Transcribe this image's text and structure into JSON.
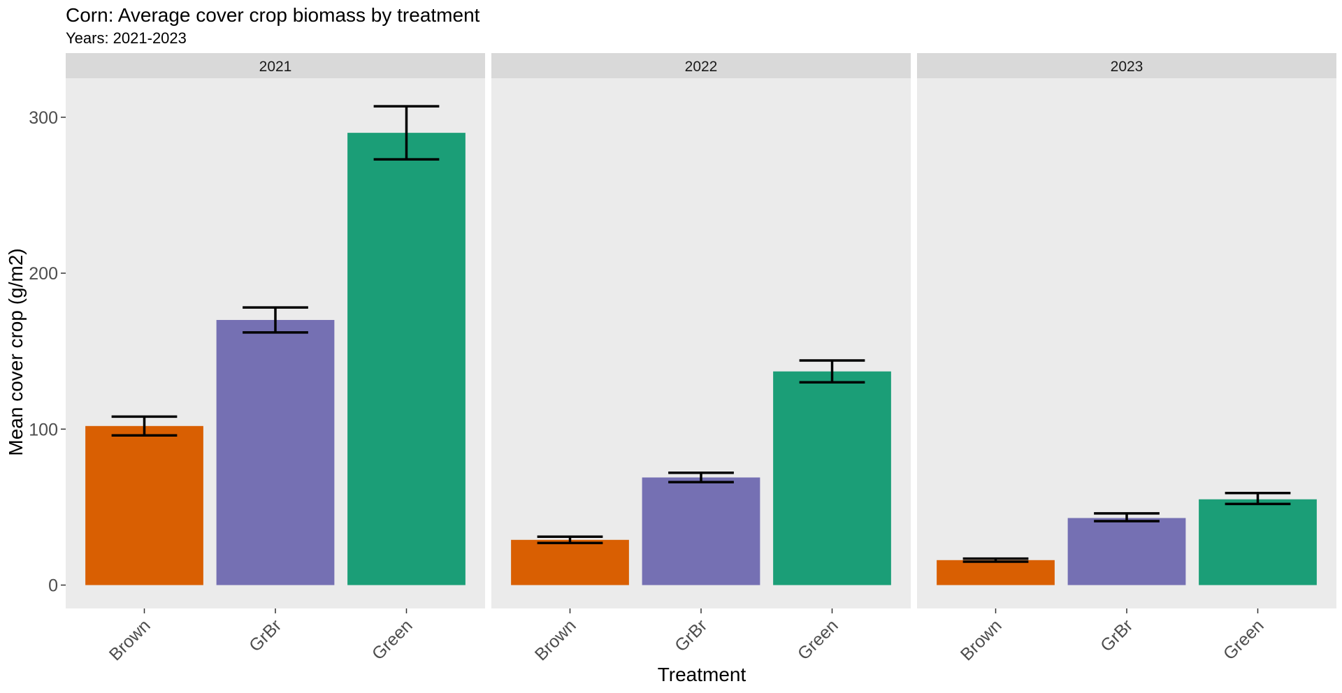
{
  "chart_data": {
    "type": "bar",
    "title": "Corn: Average cover crop biomass by treatment",
    "subtitle": "Years: 2021-2023",
    "xlabel": "Treatment",
    "ylabel": "Mean cover crop (g/m2)",
    "ylim": [
      -15,
      325
    ],
    "yticks": [
      0,
      100,
      200,
      300
    ],
    "categories": [
      "Brown",
      "GrBr",
      "Green"
    ],
    "colors": {
      "Brown": "#D95F02",
      "GrBr": "#7570B3",
      "Green": "#1B9E77"
    },
    "panel_background": "#EBEBEB",
    "strip_background": "#D9D9D9",
    "grid": false,
    "error_bars": true,
    "facets": [
      {
        "label": "2021",
        "values": [
          102,
          170,
          290
        ],
        "lower": [
          96,
          162,
          273
        ],
        "upper": [
          108,
          178,
          307
        ]
      },
      {
        "label": "2022",
        "values": [
          29,
          69,
          137
        ],
        "lower": [
          27,
          66,
          130
        ],
        "upper": [
          31,
          72,
          144
        ]
      },
      {
        "label": "2023",
        "values": [
          16,
          43,
          55
        ],
        "lower": [
          15,
          41,
          52
        ],
        "upper": [
          17,
          46,
          59
        ]
      }
    ]
  }
}
